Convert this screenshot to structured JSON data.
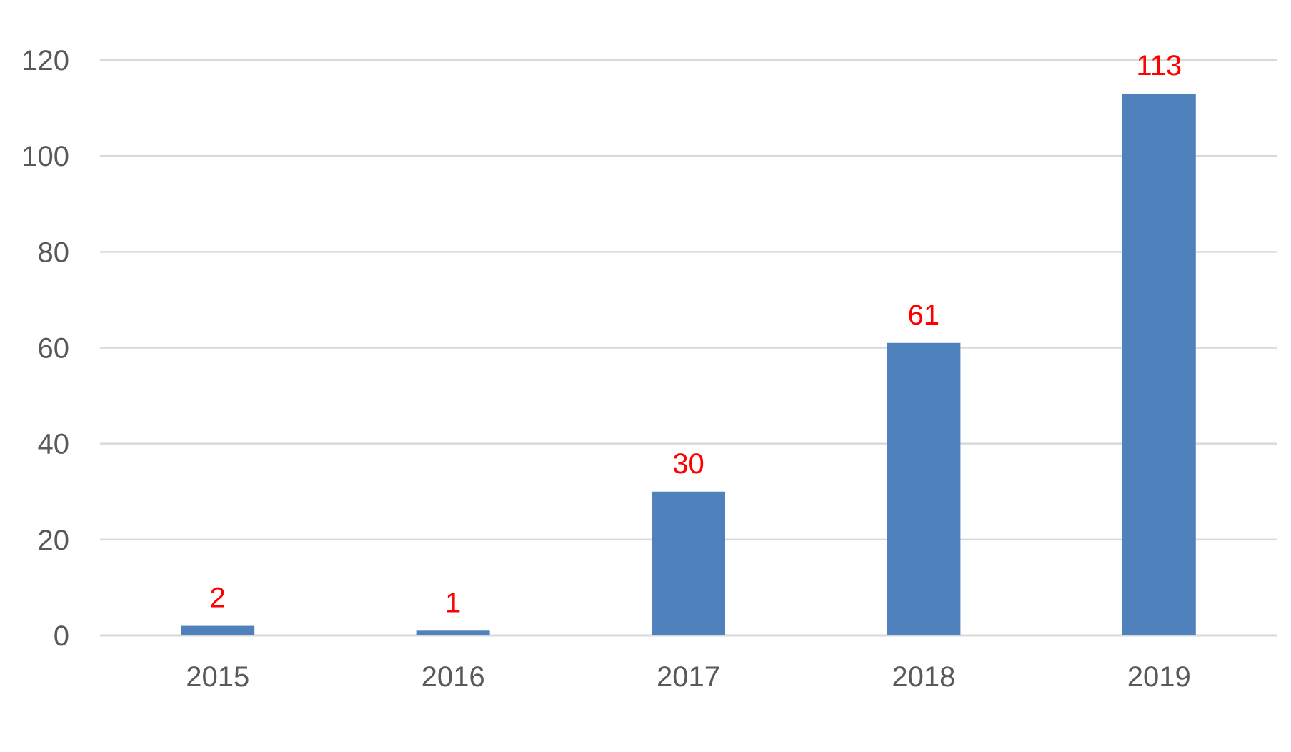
{
  "chart_data": {
    "type": "bar",
    "categories": [
      "2015",
      "2016",
      "2017",
      "2018",
      "2019"
    ],
    "series": [
      {
        "values": [
          2,
          1,
          30,
          61,
          113
        ],
        "data_labels": [
          "2",
          "1",
          "30",
          "61",
          "113"
        ]
      }
    ],
    "ylim": [
      0,
      120
    ],
    "yticks": [
      0,
      20,
      40,
      60,
      80,
      100,
      120
    ],
    "ytick_labels": [
      "0",
      "20",
      "40",
      "60",
      "80",
      "100",
      "120"
    ],
    "grid": true,
    "legend": "none",
    "colors": {
      "bar": "#4f81bd",
      "data_label": "#ff0000",
      "tick_label": "#595959",
      "grid": "#d9d9d9"
    }
  }
}
